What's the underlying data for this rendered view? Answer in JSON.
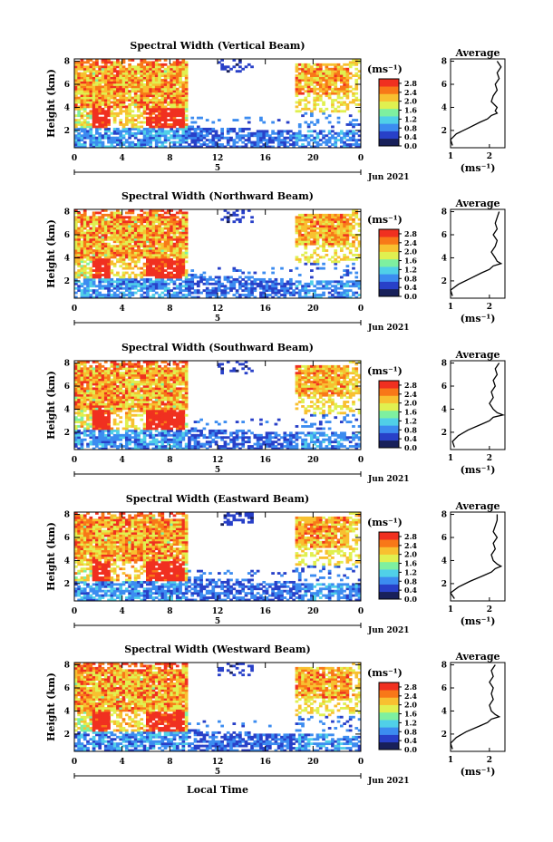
{
  "figure": {
    "date_label": "Jun 2021",
    "xlabel": "Local Time",
    "colorbar_unit": "(ms⁻¹)",
    "avg_unit": "(ms⁻¹)",
    "colors": {
      "scale": [
        "#18205a",
        "#2840c8",
        "#3c8cf0",
        "#50d0e8",
        "#7ef0a0",
        "#e0f050",
        "#f8c030",
        "#f87818",
        "#f03020"
      ]
    }
  },
  "chart_data": [
    {
      "type": "heatmap",
      "title": "Spectral Width (Vertical Beam)",
      "ylabel": "Height (km)",
      "xlabel": "",
      "x_ticks": [
        "0",
        "4",
        "8",
        "12",
        "16",
        "20",
        "0"
      ],
      "x_day_marker": "5",
      "xlim": [
        0,
        24
      ],
      "y_ticks": [
        "2",
        "4",
        "6",
        "8"
      ],
      "ylim": [
        0.5,
        8.2
      ],
      "colorbar": {
        "ticks": [
          "0.0",
          "0.4",
          "0.8",
          "1.2",
          "1.6",
          "2.0",
          "2.4",
          "2.8"
        ],
        "range": [
          0,
          3.0
        ]
      },
      "average_profile": {
        "title": "Average",
        "xlabel": "(ms⁻¹)",
        "x_ticks": [
          "1",
          "2"
        ],
        "xlim": [
          1,
          2.4
        ],
        "y_ticks": [
          "2",
          "4",
          "6",
          "8"
        ],
        "ylim": [
          0.5,
          8.2
        ],
        "height_km": [
          0.7,
          1.2,
          1.7,
          2.2,
          2.7,
          3.0,
          3.3,
          3.5,
          3.7,
          4.0,
          4.5,
          5.0,
          5.5,
          6.0,
          6.5,
          7.0,
          7.5,
          8.0
        ],
        "width_ms": [
          1.05,
          1.0,
          1.15,
          1.45,
          1.75,
          1.95,
          2.05,
          2.2,
          2.15,
          2.2,
          2.05,
          2.1,
          2.2,
          2.15,
          2.25,
          2.2,
          2.3,
          2.2
        ]
      }
    },
    {
      "type": "heatmap",
      "title": "Spectral Width (Northward Beam)",
      "ylabel": "Height (km)",
      "xlabel": "",
      "x_ticks": [
        "0",
        "4",
        "8",
        "12",
        "16",
        "20",
        "0"
      ],
      "x_day_marker": "5",
      "xlim": [
        0,
        24
      ],
      "y_ticks": [
        "2",
        "4",
        "6",
        "8"
      ],
      "ylim": [
        0.5,
        8.2
      ],
      "colorbar": {
        "ticks": [
          "0.0",
          "0.4",
          "0.8",
          "1.2",
          "1.6",
          "2.0",
          "2.4",
          "2.8"
        ],
        "range": [
          0,
          3.0
        ]
      },
      "average_profile": {
        "title": "Average",
        "xlabel": "(ms⁻¹)",
        "x_ticks": [
          "1",
          "2"
        ],
        "xlim": [
          1,
          2.4
        ],
        "y_ticks": [
          "2",
          "4",
          "6",
          "8"
        ],
        "ylim": [
          0.5,
          8.2
        ],
        "height_km": [
          0.7,
          1.2,
          1.7,
          2.2,
          2.7,
          3.0,
          3.3,
          3.5,
          3.7,
          4.0,
          4.5,
          5.0,
          5.5,
          6.0,
          6.5,
          7.0,
          7.5,
          8.0
        ],
        "width_ms": [
          1.05,
          1.0,
          1.2,
          1.5,
          1.8,
          2.0,
          2.1,
          2.3,
          2.2,
          2.15,
          2.05,
          2.15,
          2.2,
          2.1,
          2.2,
          2.15,
          2.2,
          2.25
        ]
      }
    },
    {
      "type": "heatmap",
      "title": "Spectral Width (Southward Beam)",
      "ylabel": "Height (km)",
      "xlabel": "",
      "x_ticks": [
        "0",
        "4",
        "8",
        "12",
        "16",
        "20",
        "0"
      ],
      "x_day_marker": "5",
      "xlim": [
        0,
        24
      ],
      "y_ticks": [
        "2",
        "4",
        "6",
        "8"
      ],
      "ylim": [
        0.5,
        8.2
      ],
      "colorbar": {
        "ticks": [
          "0.0",
          "0.4",
          "0.8",
          "1.2",
          "1.6",
          "2.0",
          "2.4",
          "2.8"
        ],
        "range": [
          0,
          3.0
        ]
      },
      "average_profile": {
        "title": "Average",
        "xlabel": "(ms⁻¹)",
        "x_ticks": [
          "1",
          "2"
        ],
        "xlim": [
          1,
          2.4
        ],
        "y_ticks": [
          "2",
          "4",
          "6",
          "8"
        ],
        "ylim": [
          0.5,
          8.2
        ],
        "height_km": [
          0.7,
          1.2,
          1.7,
          2.2,
          2.7,
          3.0,
          3.3,
          3.5,
          3.7,
          4.0,
          4.5,
          5.0,
          5.5,
          6.0,
          6.5,
          7.0,
          7.5,
          8.0
        ],
        "width_ms": [
          1.1,
          1.05,
          1.2,
          1.45,
          1.8,
          2.0,
          2.1,
          2.35,
          2.2,
          2.1,
          2.0,
          2.1,
          2.05,
          2.15,
          2.1,
          2.2,
          2.15,
          2.25
        ]
      }
    },
    {
      "type": "heatmap",
      "title": "Spectral Width (Eastward Beam)",
      "ylabel": "Height (km)",
      "xlabel": "",
      "x_ticks": [
        "0",
        "4",
        "8",
        "12",
        "16",
        "20",
        "0"
      ],
      "x_day_marker": "5",
      "xlim": [
        0,
        24
      ],
      "y_ticks": [
        "2",
        "4",
        "6",
        "8"
      ],
      "ylim": [
        0.5,
        8.2
      ],
      "colorbar": {
        "ticks": [
          "0.0",
          "0.4",
          "0.8",
          "1.2",
          "1.6",
          "2.0",
          "2.4",
          "2.8"
        ],
        "range": [
          0,
          3.0
        ]
      },
      "average_profile": {
        "title": "Average",
        "xlabel": "(ms⁻¹)",
        "x_ticks": [
          "1",
          "2"
        ],
        "xlim": [
          1,
          2.4
        ],
        "y_ticks": [
          "2",
          "4",
          "6",
          "8"
        ],
        "ylim": [
          0.5,
          8.2
        ],
        "height_km": [
          0.7,
          1.2,
          1.7,
          2.2,
          2.7,
          3.0,
          3.3,
          3.5,
          3.7,
          4.0,
          4.5,
          5.0,
          5.5,
          6.0,
          6.5,
          7.0,
          7.5,
          8.0
        ],
        "width_ms": [
          1.1,
          1.0,
          1.2,
          1.5,
          1.85,
          2.05,
          2.15,
          2.3,
          2.2,
          2.1,
          2.05,
          2.15,
          2.1,
          2.2,
          2.1,
          2.15,
          2.2,
          2.2
        ]
      }
    },
    {
      "type": "heatmap",
      "title": "Spectral Width (Westward Beam)",
      "ylabel": "Height (km)",
      "xlabel": "Local Time",
      "x_ticks": [
        "0",
        "4",
        "8",
        "12",
        "16",
        "20",
        "0"
      ],
      "x_day_marker": "5",
      "xlim": [
        0,
        24
      ],
      "y_ticks": [
        "2",
        "4",
        "6",
        "8"
      ],
      "ylim": [
        0.5,
        8.2
      ],
      "colorbar": {
        "ticks": [
          "0.0",
          "0.4",
          "0.8",
          "1.2",
          "1.6",
          "2.0",
          "2.4",
          "2.8"
        ],
        "range": [
          0,
          3.0
        ]
      },
      "average_profile": {
        "title": "Average",
        "xlabel": "(ms⁻¹)",
        "x_ticks": [
          "1",
          "2"
        ],
        "xlim": [
          1,
          2.4
        ],
        "y_ticks": [
          "2",
          "4",
          "6",
          "8"
        ],
        "ylim": [
          0.5,
          8.2
        ],
        "height_km": [
          0.7,
          1.2,
          1.7,
          2.2,
          2.7,
          3.0,
          3.3,
          3.5,
          3.7,
          4.0,
          4.5,
          5.0,
          5.5,
          6.0,
          6.5,
          7.0,
          7.5,
          8.0
        ],
        "width_ms": [
          1.05,
          1.0,
          1.15,
          1.4,
          1.75,
          1.95,
          2.05,
          2.25,
          2.15,
          2.05,
          2.0,
          2.1,
          2.05,
          2.1,
          2.0,
          2.1,
          2.05,
          2.15
        ]
      }
    }
  ]
}
